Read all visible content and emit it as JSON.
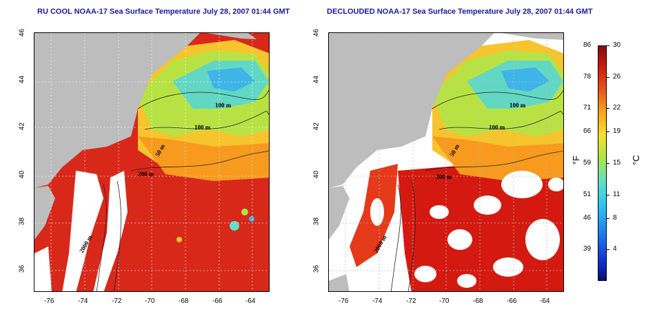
{
  "titles": {
    "left": "RU COOL NOAA-17 Sea Surface Temperature July 28, 2007 01:44 GMT",
    "right": "DECLOUDED NOAA-17 Sea Surface Temperature July 28, 2007 01:44 GMT"
  },
  "axes": {
    "lat_ticks": [
      "36",
      "38",
      "40",
      "42",
      "44",
      "46"
    ],
    "lon_ticks": [
      "-76",
      "-74",
      "-72",
      "-70",
      "-68",
      "-66",
      "-64"
    ]
  },
  "contours": [
    "100 m",
    "100 m",
    "50 m",
    "200 m",
    "2000 m"
  ],
  "colorbar": {
    "unit_f": "°F",
    "unit_c": "°C",
    "f_labels": [
      "86",
      "78",
      "71",
      "66",
      "59",
      "51",
      "46",
      "39"
    ],
    "c_labels": [
      "30",
      "26",
      "22",
      "19",
      "15",
      "11",
      "8",
      "4"
    ],
    "f_values": [
      86,
      78,
      71,
      66,
      59,
      51,
      46,
      39
    ],
    "c_values": [
      30,
      26,
      22,
      19,
      15,
      11,
      8,
      4
    ],
    "range_c": [
      0,
      30
    ]
  },
  "colors": {
    "land": "#bdbdbd",
    "cloud": "#ffffff",
    "warm": "#d41a10",
    "mid": "#f5b21c",
    "cool": "#5fe0c8",
    "contour": "#222222",
    "title": "#1a1aa0"
  }
}
